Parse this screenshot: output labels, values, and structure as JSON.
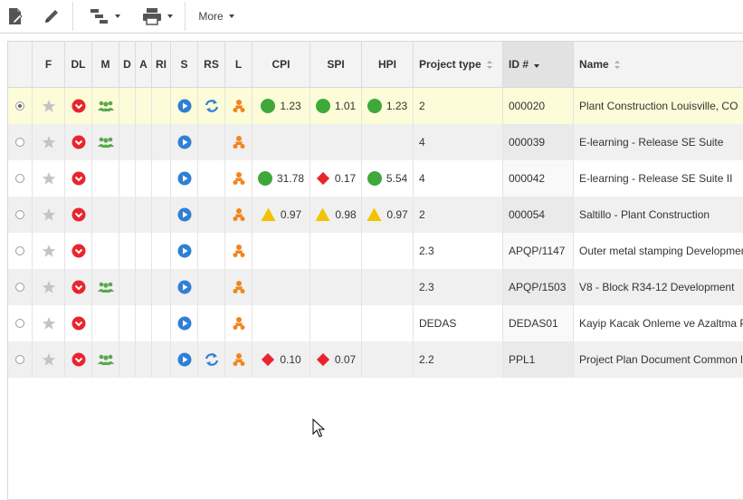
{
  "toolbar": {
    "more_label": "More",
    "icons": [
      "document-edit-icon",
      "pencil-icon",
      "hierarchy-icon",
      "print-icon"
    ]
  },
  "grid": {
    "columns": {
      "select": "",
      "f": "F",
      "dl": "DL",
      "m": "M",
      "d": "D",
      "a": "A",
      "ri": "RI",
      "s": "S",
      "rs": "RS",
      "l": "L",
      "cpi": "CPI",
      "spi": "SPI",
      "hpi": "HPI",
      "project_type": "Project type",
      "id": "ID #",
      "name": "Name"
    },
    "sorted_column": "id",
    "sort_direction": "descending",
    "rows": [
      {
        "selected": true,
        "m": true,
        "rs": true,
        "cpi": {
          "status": "green",
          "value": "1.23"
        },
        "spi": {
          "status": "green",
          "value": "1.01"
        },
        "hpi": {
          "status": "green",
          "value": "1.23"
        },
        "project_type": "2",
        "id": "000020",
        "name": "Plant Construction Louisville, CO"
      },
      {
        "selected": false,
        "m": true,
        "rs": false,
        "cpi": null,
        "spi": null,
        "hpi": null,
        "project_type": "4",
        "id": "000039",
        "name": "E-learning - Release SE Suite"
      },
      {
        "selected": false,
        "m": false,
        "rs": false,
        "cpi": {
          "status": "green",
          "value": "31.78"
        },
        "spi": {
          "status": "red",
          "value": "0.17"
        },
        "hpi": {
          "status": "green",
          "value": "5.54"
        },
        "project_type": "4",
        "id": "000042",
        "name": "E-learning - Release SE Suite II"
      },
      {
        "selected": false,
        "m": false,
        "rs": false,
        "cpi": {
          "status": "yellow",
          "value": "0.97"
        },
        "spi": {
          "status": "yellow",
          "value": "0.98"
        },
        "hpi": {
          "status": "yellow",
          "value": "0.97"
        },
        "project_type": "2",
        "id": "000054",
        "name": "Saltillo - Plant Construction"
      },
      {
        "selected": false,
        "m": false,
        "rs": false,
        "cpi": null,
        "spi": null,
        "hpi": null,
        "project_type": "2.3",
        "id": "APQP/1147",
        "name": "Outer metal stamping Development"
      },
      {
        "selected": false,
        "m": true,
        "rs": false,
        "cpi": null,
        "spi": null,
        "hpi": null,
        "project_type": "2.3",
        "id": "APQP/1503",
        "name": "V8 - Block R34-12 Development"
      },
      {
        "selected": false,
        "m": false,
        "rs": false,
        "cpi": null,
        "spi": null,
        "hpi": null,
        "project_type": "DEDAS",
        "id": "DEDAS01",
        "name": "Kayip Kacak Onleme ve Azaltma P"
      },
      {
        "selected": false,
        "m": true,
        "rs": true,
        "cpi": {
          "status": "red",
          "value": "0.10"
        },
        "spi": {
          "status": "red",
          "value": "0.07"
        },
        "hpi": null,
        "project_type": "2.2",
        "id": "PPL1",
        "name": "Project Plan Document Common l"
      }
    ]
  },
  "colors": {
    "selected_row": "#fdfcd8",
    "alt_row": "#f0f0f0",
    "header_bg": "#f3f3f3",
    "sorted_header_bg": "#e2e2e2",
    "status_green": "#3fa83a",
    "status_red": "#e8252e",
    "status_yellow": "#f2c300",
    "play_blue": "#2f7fd6",
    "refresh_blue": "#2f7fd6",
    "team_green": "#5aa74c",
    "person_orange": "#f0841e",
    "star_gray": "#c4c4c4"
  }
}
